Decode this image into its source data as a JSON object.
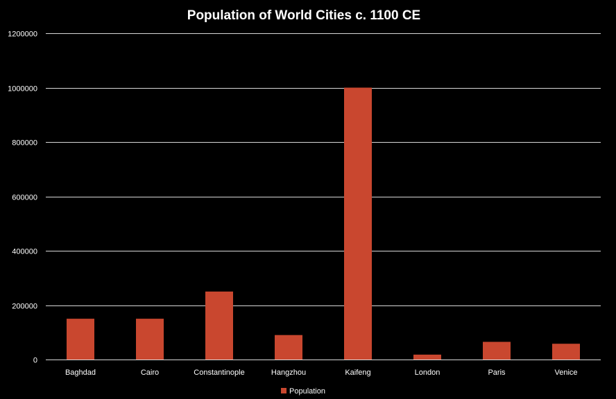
{
  "chart_data": {
    "type": "bar",
    "title": "Population of World Cities c. 1100 CE",
    "xlabel": "",
    "ylabel": "",
    "categories": [
      "Baghdad",
      "Cairo",
      "Constantinople",
      "Hangzhou",
      "Kaifeng",
      "London",
      "Paris",
      "Venice"
    ],
    "series": [
      {
        "name": "Population",
        "values": [
          150000,
          150000,
          250000,
          90000,
          1000000,
          18000,
          65000,
          58000
        ],
        "color": "#c9472f"
      }
    ],
    "ylim": [
      0,
      1200000
    ],
    "yticks": [
      0,
      200000,
      400000,
      600000,
      800000,
      1000000,
      1200000
    ],
    "ytick_labels": [
      "0",
      "200000",
      "400000",
      "600000",
      "800000",
      "1000000",
      "1200000"
    ],
    "grid": true,
    "legend_position": "bottom",
    "colors": {
      "background": "#000000",
      "text": "#ffffff",
      "gridline": "#d9d9d9",
      "bar": "#c9472f"
    }
  }
}
